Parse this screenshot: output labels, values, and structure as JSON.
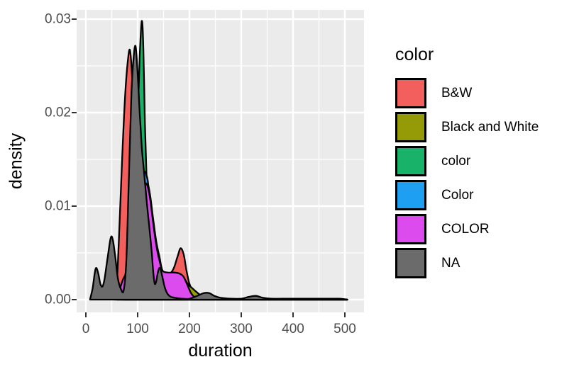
{
  "figure": {
    "background": "#FFFFFF",
    "panel_background": "#EBEBEB",
    "gridline_color": "#FFFFFF",
    "axis_text_color": "#4D4D4D",
    "axis_title_color": "#000000",
    "tick_mark_color": "#333333",
    "curve_outline_color": "#000000"
  },
  "chart_data": {
    "type": "area",
    "subtype": "overlaid-density-curves",
    "title": "",
    "xlabel": "duration",
    "ylabel": "density",
    "legend_title": "color",
    "legend_position": "right",
    "grid": "major-and-minor-white-on-gray",
    "xlim": [
      -18,
      535
    ],
    "ylim": [
      0,
      0.031
    ],
    "x_ticks": {
      "values": [
        0,
        100,
        200,
        300,
        400,
        500
      ],
      "labels": [
        "0",
        "100",
        "200",
        "300",
        "400",
        "500"
      ]
    },
    "y_ticks": {
      "values": [
        0,
        0.01,
        0.02,
        0.03
      ],
      "labels": [
        "0.00",
        "0.01",
        "0.02",
        "0.03"
      ]
    },
    "series": [
      {
        "name": "B&W",
        "color": "#F25F5C",
        "points": [
          [
            55,
            0
          ],
          [
            60,
            0.002
          ],
          [
            65,
            0.008
          ],
          [
            70,
            0.015
          ],
          [
            76,
            0.022
          ],
          [
            81,
            0.0255
          ],
          [
            85,
            0.0267
          ],
          [
            89,
            0.024
          ],
          [
            93,
            0.018
          ],
          [
            97,
            0.012
          ],
          [
            102,
            0.0075
          ],
          [
            108,
            0.005
          ],
          [
            115,
            0.004
          ],
          [
            125,
            0.0035
          ],
          [
            135,
            0.0031
          ],
          [
            145,
            0.0028
          ],
          [
            155,
            0.0026
          ],
          [
            163,
            0.0028
          ],
          [
            170,
            0.0034
          ],
          [
            177,
            0.0046
          ],
          [
            183,
            0.0055
          ],
          [
            189,
            0.0048
          ],
          [
            194,
            0.0032
          ],
          [
            200,
            0.0017
          ],
          [
            208,
            0.0008
          ],
          [
            218,
            0.0003
          ],
          [
            232,
            0.0001
          ],
          [
            250,
            0
          ],
          [
            505,
            0
          ]
        ]
      },
      {
        "name": "Black and White",
        "color": "#959B06",
        "points": [
          [
            60,
            0
          ],
          [
            70,
            0.0014
          ],
          [
            80,
            0.0036
          ],
          [
            90,
            0.0066
          ],
          [
            96,
            0.008
          ],
          [
            104,
            0.0105
          ],
          [
            112,
            0.0125
          ],
          [
            118,
            0.0127
          ],
          [
            124,
            0.0112
          ],
          [
            130,
            0.0086
          ],
          [
            136,
            0.0062
          ],
          [
            142,
            0.0046
          ],
          [
            148,
            0.0031
          ],
          [
            158,
            0.0027
          ],
          [
            170,
            0.0026
          ],
          [
            180,
            0.0025
          ],
          [
            190,
            0.0022
          ],
          [
            198,
            0.0016
          ],
          [
            206,
            0.0012
          ],
          [
            214,
            0.0008
          ],
          [
            224,
            0.0004
          ],
          [
            236,
            0.0002
          ],
          [
            252,
            0.0001
          ],
          [
            268,
            0
          ],
          [
            505,
            0
          ]
        ]
      },
      {
        "name": "color",
        "color": "#19B269",
        "points": [
          [
            70,
            0
          ],
          [
            78,
            0.002
          ],
          [
            85,
            0.005
          ],
          [
            91,
            0.009
          ],
          [
            96,
            0.014
          ],
          [
            100,
            0.019
          ],
          [
            104,
            0.026
          ],
          [
            108,
            0.0298
          ],
          [
            111,
            0.027
          ],
          [
            114,
            0.019
          ],
          [
            117,
            0.0135
          ],
          [
            120,
            0.011
          ],
          [
            124,
            0.008
          ],
          [
            129,
            0.0055
          ],
          [
            135,
            0.0037
          ],
          [
            142,
            0.0024
          ],
          [
            150,
            0.0014
          ],
          [
            160,
            0.0007
          ],
          [
            172,
            0.0003
          ],
          [
            188,
            0.0001
          ],
          [
            205,
            0
          ],
          [
            505,
            0
          ]
        ]
      },
      {
        "name": "Color",
        "color": "#1E9FF2",
        "points": [
          [
            75,
            0
          ],
          [
            83,
            0.0025
          ],
          [
            91,
            0.006
          ],
          [
            99,
            0.0095
          ],
          [
            106,
            0.0122
          ],
          [
            111,
            0.0134
          ],
          [
            114,
            0.0137
          ],
          [
            117,
            0.0133
          ],
          [
            120,
            0.0125
          ],
          [
            124,
            0.0095
          ],
          [
            130,
            0.0065
          ],
          [
            137,
            0.004
          ],
          [
            145,
            0.0022
          ],
          [
            154,
            0.001
          ],
          [
            165,
            0.0004
          ],
          [
            180,
            0.0001
          ],
          [
            195,
            0
          ],
          [
            505,
            0
          ]
        ]
      },
      {
        "name": "COLOR",
        "color": "#DC4BEE",
        "points": [
          [
            60,
            0
          ],
          [
            66,
            0.0012
          ],
          [
            72,
            0.0022
          ],
          [
            78,
            0.0028
          ],
          [
            83,
            0.0036
          ],
          [
            88,
            0.0045
          ],
          [
            93,
            0.0058
          ],
          [
            100,
            0.0085
          ],
          [
            106,
            0.0108
          ],
          [
            112,
            0.0122
          ],
          [
            118,
            0.0123
          ],
          [
            124,
            0.0108
          ],
          [
            130,
            0.0082
          ],
          [
            136,
            0.0058
          ],
          [
            142,
            0.0042
          ],
          [
            148,
            0.0031
          ],
          [
            158,
            0.0029
          ],
          [
            170,
            0.0029
          ],
          [
            180,
            0.0028
          ],
          [
            188,
            0.0025
          ],
          [
            195,
            0.0017
          ],
          [
            202,
            0.0008
          ],
          [
            209,
            0.0003
          ],
          [
            218,
            0.0001
          ],
          [
            232,
            0
          ],
          [
            505,
            0
          ]
        ]
      },
      {
        "name": "NA",
        "color": "#6B6B6B",
        "points": [
          [
            8,
            0
          ],
          [
            13,
            0.0012
          ],
          [
            17,
            0.0028
          ],
          [
            20,
            0.0034
          ],
          [
            24,
            0.0028
          ],
          [
            28,
            0.0017
          ],
          [
            32,
            0.0014
          ],
          [
            36,
            0.0022
          ],
          [
            42,
            0.0045
          ],
          [
            48,
            0.0066
          ],
          [
            52,
            0.0064
          ],
          [
            57,
            0.0045
          ],
          [
            62,
            0.0022
          ],
          [
            68,
            0.0011
          ],
          [
            73,
            0.001
          ],
          [
            78,
            0.004
          ],
          [
            83,
            0.013
          ],
          [
            88,
            0.022
          ],
          [
            92,
            0.0258
          ],
          [
            96,
            0.0271
          ],
          [
            100,
            0.0242
          ],
          [
            104,
            0.02
          ],
          [
            108,
            0.0163
          ],
          [
            112,
            0.0138
          ],
          [
            117,
            0.0108
          ],
          [
            122,
            0.008
          ],
          [
            127,
            0.0052
          ],
          [
            130,
            0.003
          ],
          [
            133,
            0.0017
          ],
          [
            136,
            0.002
          ],
          [
            139,
            0.0029
          ],
          [
            142,
            0.0034
          ],
          [
            145,
            0.0031
          ],
          [
            149,
            0.0021
          ],
          [
            153,
            0.0012
          ],
          [
            158,
            0.0006
          ],
          [
            164,
            0.0003
          ],
          [
            172,
            0.0002
          ],
          [
            185,
            0.0001
          ],
          [
            200,
            0.0001
          ],
          [
            215,
            0.0004
          ],
          [
            228,
            0.0007
          ],
          [
            238,
            0.0007
          ],
          [
            248,
            0.0004
          ],
          [
            260,
            0.0002
          ],
          [
            280,
            0.0001
          ],
          [
            300,
            0.0001
          ],
          [
            315,
            0.0003
          ],
          [
            328,
            0.0004
          ],
          [
            342,
            0.0002
          ],
          [
            358,
            0.0001
          ],
          [
            380,
            0.0001
          ],
          [
            430,
            0.0001
          ],
          [
            470,
            0.0001
          ],
          [
            490,
            0.0001
          ],
          [
            505,
            0
          ]
        ]
      }
    ]
  }
}
